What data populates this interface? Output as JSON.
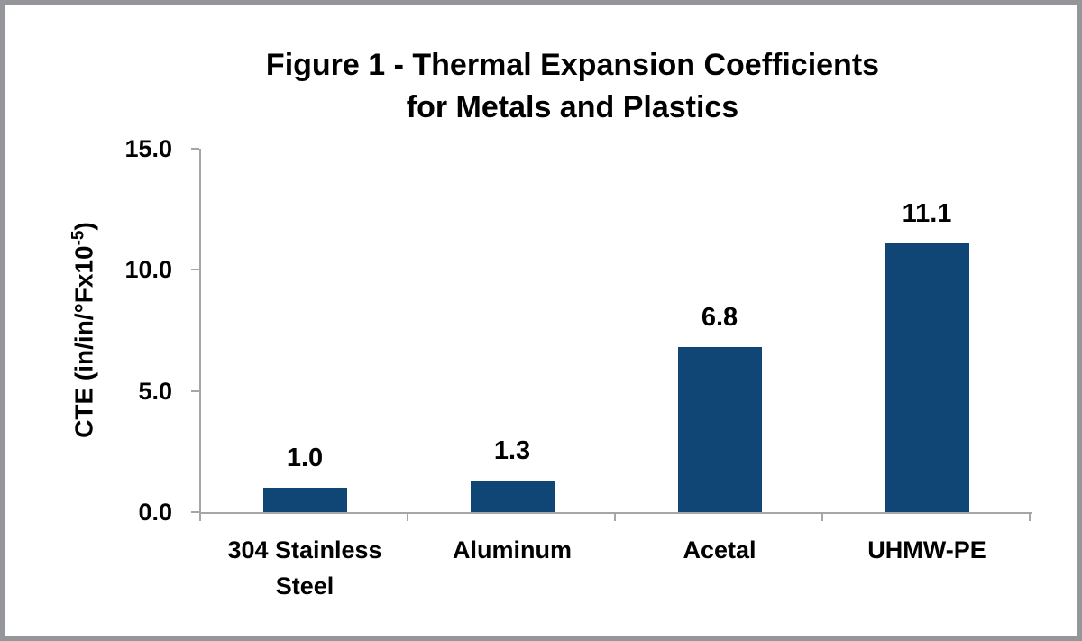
{
  "chart": {
    "title_line1": "Figure 1 - Thermal Expansion Coefficients",
    "title_line2": "for Metals and Plastics",
    "y_axis": {
      "label_prefix": "CTE (in/in/°Fx10",
      "label_superscript": "-5",
      "label_suffix": ")"
    }
  },
  "chart_data": {
    "type": "bar",
    "title": "Figure 1 - Thermal Expansion Coefficients for Metals and Plastics",
    "categories": [
      "304 Stainless Steel",
      "Aluminum",
      "Acetal",
      "UHMW-PE"
    ],
    "values": [
      1.0,
      1.3,
      6.8,
      11.1
    ],
    "data_labels": [
      "1.0",
      "1.3",
      "6.8",
      "11.1"
    ],
    "xlabel": "",
    "ylabel": "CTE (in/in/°Fx10⁻⁵)",
    "ylim": [
      0,
      15
    ],
    "ytick_values": [
      0,
      5,
      10,
      15
    ],
    "ytick_labels": [
      "0.0",
      "5.0",
      "10.0",
      "15.0"
    ],
    "grid": "off",
    "legend": "none",
    "bar_color": "#0F4676",
    "axis_color": "#A6A6A6",
    "text_color": "#000000",
    "frame_color": "#95969A"
  }
}
